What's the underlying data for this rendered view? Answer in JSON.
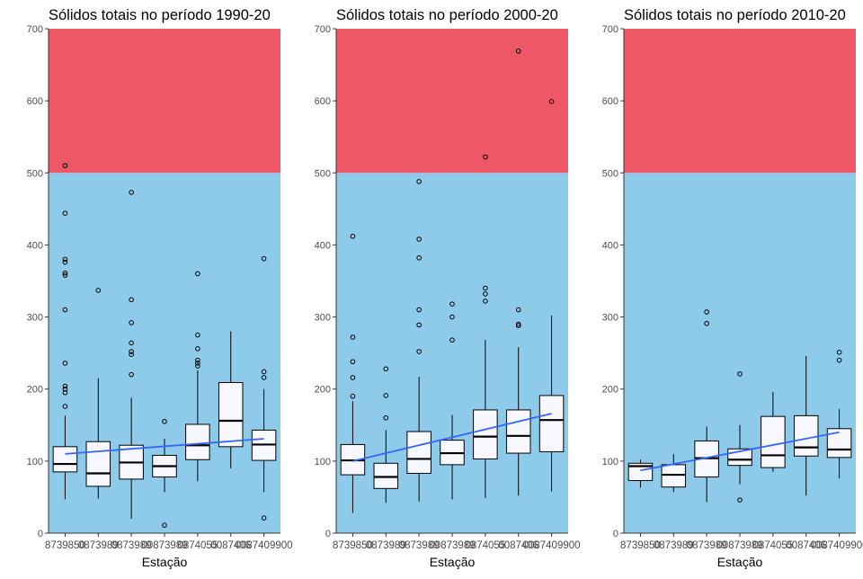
{
  "colors": {
    "upper_zone": "#EE5765",
    "lower_zone": "#8ECBEA",
    "box_fill": "#F7F7FF",
    "trend_line": "#3366FF",
    "text": "#000000",
    "tick_text": "#4D4D4D"
  },
  "chart_data": [
    {
      "type": "box",
      "title": "Sólidos totais no período 1990-20",
      "xlabel": "Estação",
      "ylabel": "",
      "ylim": [
        0,
        700
      ],
      "yticks": [
        0,
        100,
        200,
        300,
        400,
        500,
        600,
        700
      ],
      "zones": [
        {
          "from": 0,
          "to": 500,
          "color": "#8ECBEA"
        },
        {
          "from": 500,
          "to": 700,
          "color": "#EE5765"
        }
      ],
      "categories": [
        "87398500",
        "87398980",
        "87398900",
        "87398950",
        "87405500",
        "87406900",
        "87409900"
      ],
      "tick_labels": [
        "8739850",
        "0873989",
        "0873989",
        "00873989",
        "0874055",
        "0087406",
        "0087409900"
      ],
      "boxes": [
        {
          "whisker_low": 47,
          "q1": 85,
          "median": 96,
          "q3": 120,
          "whisker_high": 163,
          "outliers": [
            510,
            444,
            380,
            376,
            361,
            358,
            310,
            236,
            204,
            200,
            195,
            176
          ]
        },
        {
          "whisker_low": 48,
          "q1": 65,
          "median": 83,
          "q3": 127,
          "whisker_high": 215,
          "outliers": [
            337
          ]
        },
        {
          "whisker_low": 20,
          "q1": 75,
          "median": 98,
          "q3": 122,
          "whisker_high": 188,
          "outliers": [
            473,
            324,
            292,
            264,
            252,
            248,
            220
          ]
        },
        {
          "whisker_low": 57,
          "q1": 78,
          "median": 93,
          "q3": 108,
          "whisker_high": 131,
          "outliers": [
            155,
            11
          ]
        },
        {
          "whisker_low": 72,
          "q1": 102,
          "median": 122,
          "q3": 151,
          "whisker_high": 226,
          "outliers": [
            360,
            275,
            256,
            240,
            236,
            232
          ]
        },
        {
          "whisker_low": 90,
          "q1": 120,
          "median": 156,
          "q3": 209,
          "whisker_high": 280,
          "outliers": []
        },
        {
          "whisker_low": 57,
          "q1": 101,
          "median": 123,
          "q3": 143,
          "whisker_high": 200,
          "outliers": [
            381,
            224,
            216,
            21
          ]
        }
      ],
      "trend": {
        "start": 110,
        "end": 131
      }
    },
    {
      "type": "box",
      "title": "Sólidos totais no período 2000-20",
      "xlabel": "Estação",
      "ylabel": "",
      "ylim": [
        0,
        700
      ],
      "yticks": [
        0,
        100,
        200,
        300,
        400,
        500,
        600,
        700
      ],
      "zones": [
        {
          "from": 0,
          "to": 500,
          "color": "#8ECBEA"
        },
        {
          "from": 500,
          "to": 700,
          "color": "#EE5765"
        }
      ],
      "categories": [
        "87398500",
        "87398980",
        "87398900",
        "87398950",
        "87405500",
        "87406900",
        "87409900"
      ],
      "tick_labels": [
        "8739850",
        "0873989",
        "0873989",
        "00873989",
        "0874055",
        "0087406",
        "0087409900"
      ],
      "boxes": [
        {
          "whisker_low": 28,
          "q1": 81,
          "median": 101,
          "q3": 123,
          "whisker_high": 183,
          "outliers": [
            412,
            272,
            238,
            216,
            190
          ]
        },
        {
          "whisker_low": 42,
          "q1": 62,
          "median": 78,
          "q3": 97,
          "whisker_high": 143,
          "outliers": [
            228,
            191,
            160
          ]
        },
        {
          "whisker_low": 44,
          "q1": 83,
          "median": 103,
          "q3": 141,
          "whisker_high": 217,
          "outliers": [
            488,
            408,
            382,
            310,
            289,
            252
          ]
        },
        {
          "whisker_low": 47,
          "q1": 95,
          "median": 111,
          "q3": 129,
          "whisker_high": 164,
          "outliers": [
            318,
            300,
            268
          ]
        },
        {
          "whisker_low": 49,
          "q1": 103,
          "median": 134,
          "q3": 171,
          "whisker_high": 268,
          "outliers": [
            522,
            340,
            332,
            322
          ]
        },
        {
          "whisker_low": 52,
          "q1": 111,
          "median": 135,
          "q3": 171,
          "whisker_high": 258,
          "outliers": [
            669,
            310,
            290,
            288
          ]
        },
        {
          "whisker_low": 58,
          "q1": 113,
          "median": 157,
          "q3": 191,
          "whisker_high": 302,
          "outliers": [
            599
          ]
        }
      ],
      "trend": {
        "start": 100,
        "end": 166
      }
    },
    {
      "type": "box",
      "title": "Sólidos totais no período 2010-20",
      "xlabel": "Estação",
      "ylabel": "",
      "ylim": [
        0,
        700
      ],
      "yticks": [
        0,
        100,
        200,
        300,
        400,
        500,
        600,
        700
      ],
      "zones": [
        {
          "from": 0,
          "to": 500,
          "color": "#8ECBEA"
        },
        {
          "from": 500,
          "to": 700,
          "color": "#EE5765"
        }
      ],
      "categories": [
        "87398500",
        "87398980",
        "87398900",
        "87398950",
        "87405500",
        "87406900",
        "87409900"
      ],
      "tick_labels": [
        "8739850",
        "0873989",
        "0873989",
        "00873989",
        "0874055",
        "0087406",
        "0087409900"
      ],
      "boxes": [
        {
          "whisker_low": 63,
          "q1": 73,
          "median": 93,
          "q3": 97,
          "whisker_high": 102,
          "outliers": []
        },
        {
          "whisker_low": 57,
          "q1": 64,
          "median": 81,
          "q3": 95,
          "whisker_high": 110,
          "outliers": []
        },
        {
          "whisker_low": 43,
          "q1": 78,
          "median": 104,
          "q3": 128,
          "whisker_high": 148,
          "outliers": [
            307,
            291
          ]
        },
        {
          "whisker_low": 68,
          "q1": 94,
          "median": 102,
          "q3": 117,
          "whisker_high": 150,
          "outliers": [
            221,
            46
          ]
        },
        {
          "whisker_low": 85,
          "q1": 91,
          "median": 108,
          "q3": 162,
          "whisker_high": 196,
          "outliers": []
        },
        {
          "whisker_low": 52,
          "q1": 107,
          "median": 119,
          "q3": 163,
          "whisker_high": 246,
          "outliers": []
        },
        {
          "whisker_low": 76,
          "q1": 105,
          "median": 116,
          "q3": 145,
          "whisker_high": 172,
          "outliers": [
            251,
            240
          ]
        }
      ],
      "trend": {
        "start": 87,
        "end": 140
      }
    }
  ]
}
